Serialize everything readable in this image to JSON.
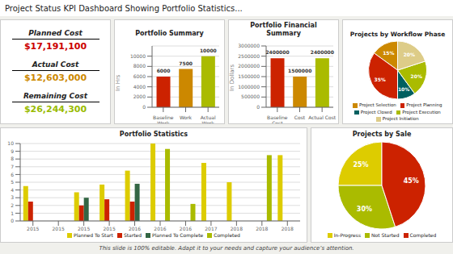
{
  "title": "Project Status KPI Dashboard Showing Portfolio Statistics...",
  "annotations": [
    "This slide is 100% editable. Adapt it to your needs and capture your audience’s attention."
  ],
  "chart_data": [
    {
      "type": "kpi",
      "categories": [
        "Planned Cost",
        "Actual Cost",
        "Remaining Cost"
      ],
      "values": [
        17191100,
        12603000,
        26244300
      ],
      "value_labels": [
        "$17,191,100",
        "$12,603,000",
        "$26,244,300"
      ],
      "colors": [
        "#cc0000",
        "#cc8800",
        "#99bb00"
      ]
    },
    {
      "type": "bar",
      "title": "Portfolio Summary",
      "categories": [
        "Baseline\nWork",
        "Work",
        "Actual\nWork"
      ],
      "values": [
        6000,
        7500,
        10000
      ],
      "colors": [
        "#cc2200",
        "#cc8800",
        "#aabb00"
      ],
      "ylabel": "In Hrs",
      "ylim": [
        0,
        12000
      ],
      "yticks": [
        0,
        2000,
        4000,
        6000,
        8000,
        10000
      ],
      "grid": true,
      "data_labels": true
    },
    {
      "type": "bar",
      "title": "Portfolio Financial\nSummary",
      "categories": [
        "Baseline\nCost",
        "Cost",
        "Actual Cost"
      ],
      "values": [
        2400000,
        1500000,
        2400000
      ],
      "colors": [
        "#cc2200",
        "#cc8800",
        "#aabb00"
      ],
      "ylabel": "In Dollars",
      "ylim": [
        0,
        3000000
      ],
      "yticks": [
        0,
        500000,
        1000000,
        1500000,
        2000000,
        2500000,
        3000000
      ],
      "grid": true,
      "data_labels": true
    },
    {
      "type": "pie",
      "title": "Projects by Workflow Phase",
      "categories": [
        "Project Selection",
        "Project Planning",
        "Project Closed",
        "Project Execution",
        "Project Initiation"
      ],
      "values": [
        15,
        35,
        10,
        20,
        20
      ],
      "value_labels": [
        "15%",
        "35%",
        "10%",
        "20%",
        "20%"
      ],
      "colors": [
        "#cc8800",
        "#cc2200",
        "#006060",
        "#aabb00",
        "#ddcc88"
      ],
      "data_labels": true,
      "legend": "bottom"
    },
    {
      "type": "bar",
      "title": "Portfolio Statistics",
      "categories": [
        "2015",
        "2015",
        "2015",
        "2015",
        "2016",
        "2016",
        "2016",
        "2017",
        "2018",
        "2018",
        "2018"
      ],
      "series": [
        {
          "name": "Planned To Start",
          "color": "#ddcc00",
          "values": [
            4.5,
            0,
            3.7,
            4.7,
            6.5,
            10,
            0,
            7.5,
            5.0,
            0,
            8.5
          ]
        },
        {
          "name": "Started",
          "color": "#cc2200",
          "values": [
            2.5,
            0,
            2.0,
            2.8,
            2.5,
            0,
            0,
            0,
            0,
            0,
            0
          ]
        },
        {
          "name": "Planned To Complete",
          "color": "#336644",
          "values": [
            0,
            0,
            3.0,
            0,
            4.8,
            0,
            0,
            0,
            0,
            0,
            0
          ]
        },
        {
          "name": "Completed",
          "color": "#aabb00",
          "values": [
            0,
            0,
            0,
            0,
            0,
            9.3,
            2.2,
            0,
            0,
            8.5,
            0
          ]
        }
      ],
      "ylim": [
        0,
        10
      ],
      "yticks": [
        0,
        1,
        2,
        3,
        4,
        5,
        6,
        7,
        8,
        9,
        10
      ],
      "grid": true,
      "legend": "bottom"
    },
    {
      "type": "pie",
      "title": "Projects by Sale",
      "categories": [
        "In-Progress",
        "Not Started",
        "Completed"
      ],
      "values": [
        25,
        30,
        45
      ],
      "value_labels": [
        "25%",
        "30%",
        "45%"
      ],
      "colors": [
        "#ddcc00",
        "#aabb00",
        "#cc2200"
      ],
      "data_labels": true,
      "legend": "bottom"
    }
  ]
}
